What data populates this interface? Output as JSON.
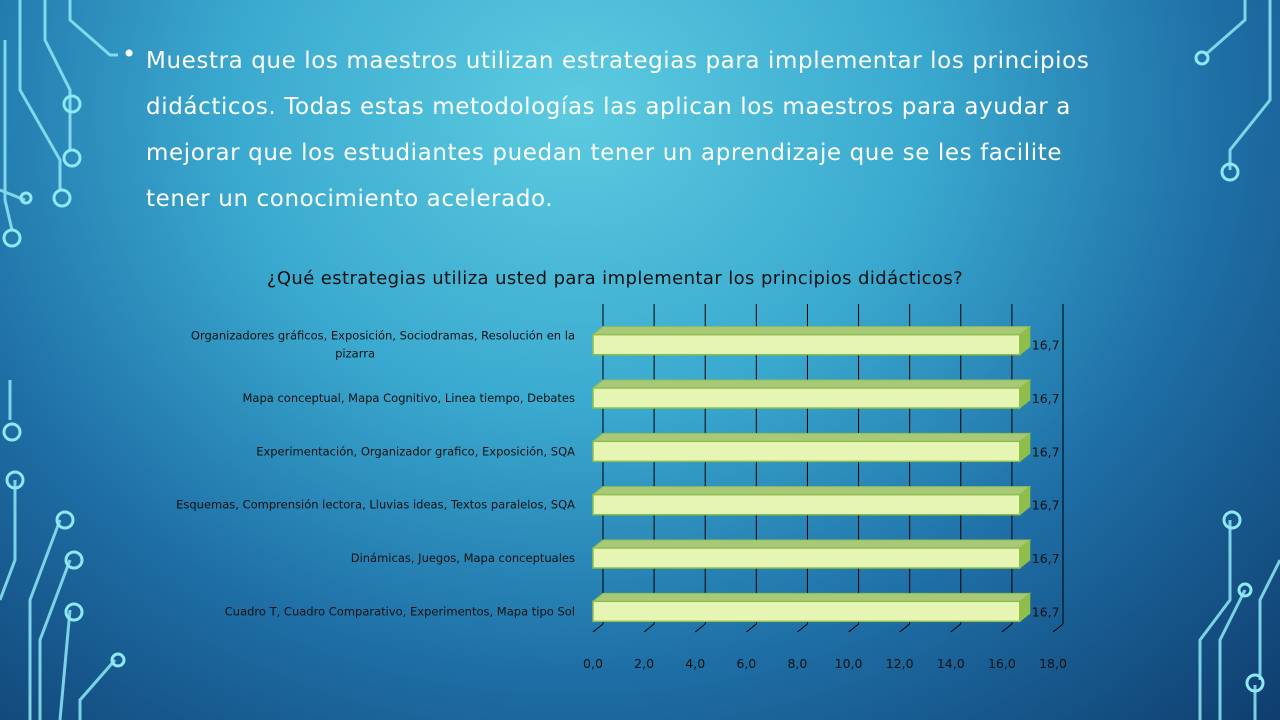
{
  "bullet": {
    "text": "Muestra que los maestros utilizan estrategias para implementar los principios didácticos. Todas estas metodologías las aplican los maestros para ayudar a mejorar que los estudiantes puedan tener un aprendizaje que se les facilite tener un conocimiento acelerado.",
    "lines": [
      "Muestra que los maestros utilizan estrategias para implementar los principios",
      "didácticos. Todas estas metodologías las aplican los maestros para ayudar a",
      "mejorar que los estudiantes puedan tener un aprendizaje que se les facilite",
      "tener un conocimiento acelerado."
    ]
  },
  "chart_data": {
    "type": "bar",
    "orientation": "horizontal",
    "title": "¿Qué estrategias utiliza usted para implementar los principios didácticos?",
    "categories": [
      [
        "Organizadores gráficos, Exposición, Sociodramas, Resolución en la",
        "pizarra"
      ],
      [
        "Mapa conceptual, Mapa Cognitivo, Linea tiempo, Debates"
      ],
      [
        "Experimentación, Organizador grafico, Exposición, SQA"
      ],
      [
        "Esquemas, Comprensión lectora, Lluvias ideas, Textos paralelos, SQA"
      ],
      [
        "Dinámicas, Juegos, Mapa conceptuales"
      ],
      [
        "Cuadro T, Cuadro Comparativo, Experimentos, Mapa tipo Sol"
      ]
    ],
    "values": [
      16.7,
      16.7,
      16.7,
      16.7,
      16.7,
      16.7
    ],
    "value_labels": [
      "16,7",
      "16,7",
      "16,7",
      "16,7",
      "16,7",
      "16,7"
    ],
    "xlim": [
      0,
      18
    ],
    "ticks": [
      "0,0",
      "2,0",
      "4,0",
      "6,0",
      "8,0",
      "10,0",
      "12,0",
      "14,0",
      "16,0",
      "18,0"
    ],
    "grid": true,
    "bar_color": "#e6f5b3",
    "bar_edge_color": "#8fbf4a"
  }
}
